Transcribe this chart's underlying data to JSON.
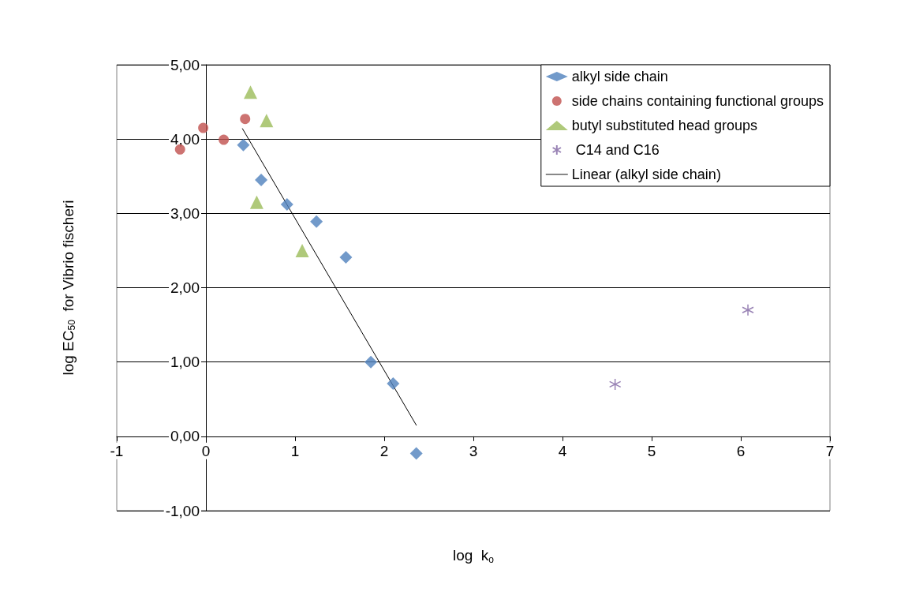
{
  "chart_data": {
    "type": "scatter",
    "xlabel": "log  k$_{o}$",
    "ylabel": "log EC$_{50}$  for Vibrio fischeri",
    "xlim": [
      -1,
      7
    ],
    "xticks": [
      -1,
      0,
      1,
      2,
      3,
      4,
      5,
      6,
      7
    ],
    "ylim": [
      -1,
      5
    ],
    "yticks": [
      {
        "value": -1,
        "label": "-1,00"
      },
      {
        "value": 0,
        "label": "0,00"
      },
      {
        "value": 1,
        "label": "1,00"
      },
      {
        "value": 2,
        "label": "2,00"
      },
      {
        "value": 3,
        "label": "3,00"
      },
      {
        "value": 4,
        "label": "4,00"
      },
      {
        "value": 5,
        "label": "5,00"
      }
    ],
    "grid": "y",
    "legend": "top right",
    "series": [
      {
        "name": "alkyl side chain",
        "color": "#4f81bd",
        "marker": "diamond",
        "x": [
          0.42,
          0.62,
          0.91,
          1.24,
          1.57,
          1.85,
          2.1,
          2.36
        ],
        "values": [
          3.92,
          3.45,
          3.12,
          2.89,
          2.41,
          1.0,
          0.71,
          -0.23
        ]
      },
      {
        "name": "side chains containing functional groups",
        "color": "#c0504d",
        "marker": "circle",
        "x": [
          -0.29,
          -0.03,
          0.2,
          0.44
        ],
        "values": [
          3.86,
          4.15,
          3.99,
          4.27
        ]
      },
      {
        "name": "butyl substituted head groups",
        "color": "#9bbb59",
        "marker": "triangle",
        "x": [
          0.5,
          0.68,
          0.57,
          1.08
        ],
        "values": [
          4.63,
          4.25,
          3.15,
          2.5
        ]
      },
      {
        "name": " C14 and C16",
        "color": "#8064a2",
        "marker": "cross",
        "x": [
          4.59,
          6.08
        ],
        "values": [
          0.7,
          1.7
        ]
      },
      {
        "name": "Linear (alkyl side chain)",
        "type": "line",
        "color": "#000000",
        "marker": "none",
        "line_style": "solid",
        "x": [
          0.41,
          2.36
        ],
        "values": [
          4.14,
          0.15
        ]
      }
    ]
  }
}
